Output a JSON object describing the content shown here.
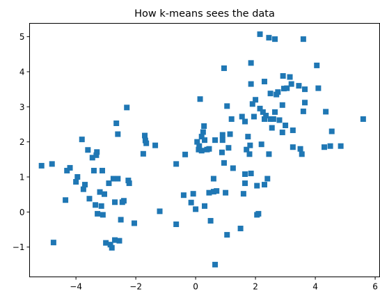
{
  "chart_data": {
    "type": "scatter",
    "title": "How k-means sees the data",
    "xlabel": "",
    "ylabel": "",
    "xlim": [
      -5.55,
      6.15
    ],
    "ylim": [
      -1.85,
      5.38
    ],
    "xticks": [
      -4,
      -2,
      0,
      2,
      4,
      6
    ],
    "yticks": [
      -1,
      0,
      1,
      2,
      3,
      4,
      5
    ],
    "xtick_labels": [
      "−4",
      "−2",
      "0",
      "2",
      "4",
      "6"
    ],
    "ytick_labels": [
      "−1",
      "0",
      "1",
      "2",
      "3",
      "4",
      "5"
    ],
    "grid": false,
    "legend": "none",
    "marker": "square",
    "color": "#1f77b4",
    "points": [
      [
        -5.15,
        1.32
      ],
      [
        -4.8,
        1.37
      ],
      [
        -4.75,
        -0.87
      ],
      [
        -4.35,
        0.34
      ],
      [
        -4.3,
        1.18
      ],
      [
        -4.2,
        1.26
      ],
      [
        -4.0,
        0.86
      ],
      [
        -3.95,
        1.0
      ],
      [
        -3.8,
        2.07
      ],
      [
        -3.75,
        0.65
      ],
      [
        -3.7,
        0.78
      ],
      [
        -3.6,
        1.77
      ],
      [
        -3.55,
        0.38
      ],
      [
        -3.45,
        1.55
      ],
      [
        -3.4,
        1.18
      ],
      [
        -3.35,
        0.2
      ],
      [
        -3.32,
        1.62
      ],
      [
        -3.3,
        1.71
      ],
      [
        -3.28,
        -0.05
      ],
      [
        -3.2,
        0.57
      ],
      [
        -3.15,
        0.17
      ],
      [
        -3.1,
        -0.08
      ],
      [
        -3.12,
        1.18
      ],
      [
        -3.05,
        0.51
      ],
      [
        -3.0,
        -0.88
      ],
      [
        -2.9,
        0.82
      ],
      [
        -2.85,
        -0.93
      ],
      [
        -2.8,
        -1.02
      ],
      [
        -2.75,
        0.95
      ],
      [
        -2.7,
        0.28
      ],
      [
        -2.65,
        2.53
      ],
      [
        -2.7,
        -0.8
      ],
      [
        -2.6,
        2.22
      ],
      [
        -2.6,
        0.95
      ],
      [
        -2.55,
        -0.82
      ],
      [
        -2.5,
        -0.22
      ],
      [
        -2.45,
        0.28
      ],
      [
        -2.4,
        0.32
      ],
      [
        -2.3,
        2.98
      ],
      [
        -2.25,
        0.9
      ],
      [
        -2.22,
        0.82
      ],
      [
        -2.05,
        -0.32
      ],
      [
        -1.75,
        1.66
      ],
      [
        -1.7,
        2.18
      ],
      [
        -1.68,
        2.04
      ],
      [
        -1.65,
        1.96
      ],
      [
        -1.35,
        1.9
      ],
      [
        -1.2,
        0.02
      ],
      [
        -0.65,
        -0.35
      ],
      [
        -0.65,
        1.37
      ],
      [
        -0.4,
        0.48
      ],
      [
        -0.35,
        1.64
      ],
      [
        -0.15,
        0.27
      ],
      [
        -0.08,
        0.52
      ],
      [
        0.0,
        0.08
      ],
      [
        0.05,
        2.0
      ],
      [
        0.1,
        1.78
      ],
      [
        0.12,
        1.88
      ],
      [
        0.15,
        3.22
      ],
      [
        0.2,
        1.75
      ],
      [
        0.2,
        2.15
      ],
      [
        0.25,
        2.28
      ],
      [
        0.28,
        2.45
      ],
      [
        0.3,
        0.17
      ],
      [
        0.3,
        2.05
      ],
      [
        0.38,
        1.78
      ],
      [
        0.45,
        1.8
      ],
      [
        0.45,
        0.55
      ],
      [
        0.5,
        -0.25
      ],
      [
        0.6,
        0.95
      ],
      [
        0.6,
        0.58
      ],
      [
        0.65,
        -1.5
      ],
      [
        0.65,
        2.05
      ],
      [
        0.7,
        0.6
      ],
      [
        0.88,
        1.7
      ],
      [
        0.9,
        2.2
      ],
      [
        0.9,
        2.05
      ],
      [
        0.95,
        4.1
      ],
      [
        0.95,
        1.4
      ],
      [
        1.0,
        0.55
      ],
      [
        1.05,
        -0.65
      ],
      [
        1.05,
        3.02
      ],
      [
        1.1,
        1.83
      ],
      [
        1.15,
        2.22
      ],
      [
        1.2,
        2.65
      ],
      [
        1.25,
        1.25
      ],
      [
        1.5,
        -0.47
      ],
      [
        1.55,
        2.72
      ],
      [
        1.6,
        0.52
      ],
      [
        1.65,
        0.82
      ],
      [
        1.65,
        1.08
      ],
      [
        1.65,
        2.58
      ],
      [
        1.7,
        1.78
      ],
      [
        1.75,
        2.15
      ],
      [
        1.8,
        1.65
      ],
      [
        1.82,
        1.9
      ],
      [
        1.85,
        4.25
      ],
      [
        1.85,
        3.65
      ],
      [
        1.85,
        1.1
      ],
      [
        1.9,
        3.08
      ],
      [
        1.95,
        2.72
      ],
      [
        2.0,
        3.2
      ],
      [
        2.05,
        0.75
      ],
      [
        2.05,
        -0.08
      ],
      [
        2.1,
        -0.05
      ],
      [
        2.15,
        5.07
      ],
      [
        2.15,
        2.95
      ],
      [
        2.2,
        1.93
      ],
      [
        2.25,
        2.85
      ],
      [
        2.3,
        0.78
      ],
      [
        2.3,
        3.72
      ],
      [
        2.3,
        2.65
      ],
      [
        2.35,
        2.75
      ],
      [
        2.4,
        0.95
      ],
      [
        2.45,
        4.97
      ],
      [
        2.45,
        1.65
      ],
      [
        2.5,
        3.38
      ],
      [
        2.5,
        2.65
      ],
      [
        2.55,
        2.4
      ],
      [
        2.6,
        2.65
      ],
      [
        2.65,
        4.93
      ],
      [
        2.65,
        2.85
      ],
      [
        2.7,
        3.35
      ],
      [
        2.75,
        3.42
      ],
      [
        2.8,
        2.62
      ],
      [
        2.9,
        2.27
      ],
      [
        2.9,
        3.05
      ],
      [
        2.92,
        3.88
      ],
      [
        2.95,
        3.52
      ],
      [
        3.0,
        2.47
      ],
      [
        3.05,
        3.53
      ],
      [
        3.15,
        3.85
      ],
      [
        3.2,
        3.65
      ],
      [
        3.25,
        2.33
      ],
      [
        3.25,
        1.85
      ],
      [
        3.45,
        3.6
      ],
      [
        3.5,
        1.8
      ],
      [
        3.55,
        1.65
      ],
      [
        3.6,
        4.93
      ],
      [
        3.6,
        2.87
      ],
      [
        3.65,
        3.5
      ],
      [
        3.65,
        3.12
      ],
      [
        4.05,
        4.18
      ],
      [
        4.1,
        3.53
      ],
      [
        4.3,
        1.85
      ],
      [
        4.35,
        2.86
      ],
      [
        4.5,
        1.88
      ],
      [
        4.55,
        2.3
      ],
      [
        4.85,
        1.88
      ],
      [
        5.6,
        2.65
      ]
    ]
  }
}
